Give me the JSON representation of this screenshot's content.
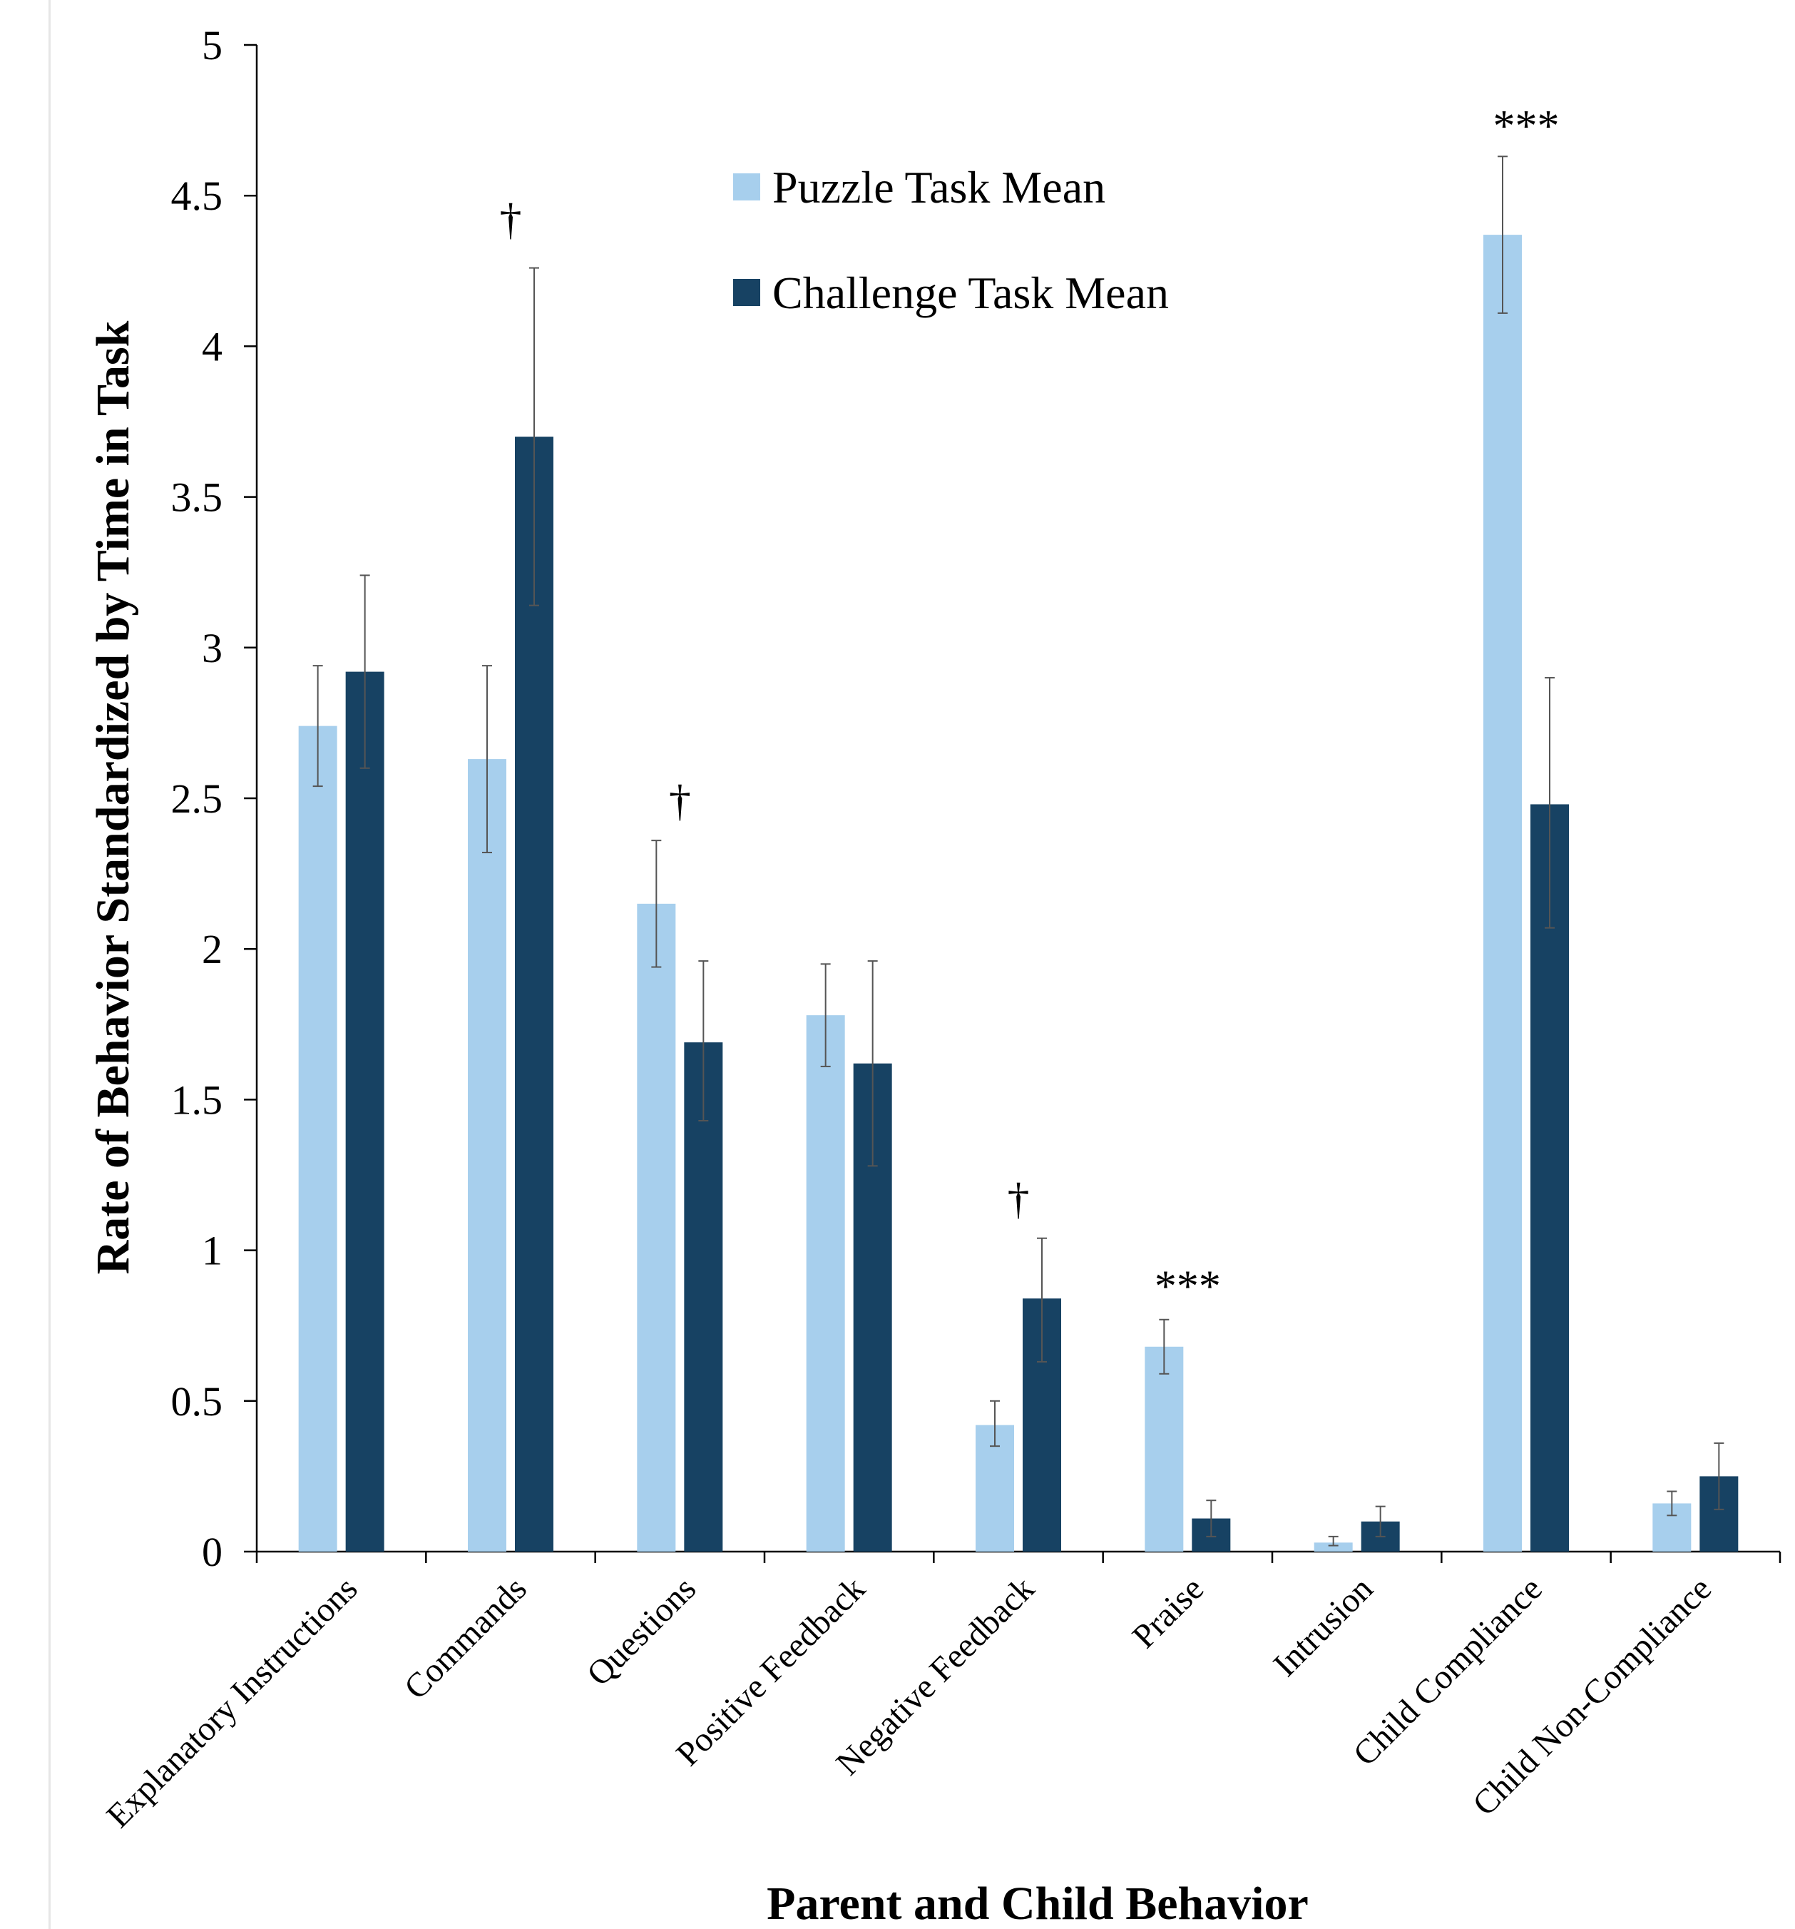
{
  "chart_data": {
    "type": "bar",
    "xlabel": "Parent and Child Behavior",
    "ylabel": "Rate of Behavior Standardized by Time in Task",
    "ylim": [
      0,
      5
    ],
    "yticks": [
      "0",
      "0.5",
      "1",
      "1.5",
      "2",
      "2.5",
      "3",
      "3.5",
      "4",
      "4.5",
      "5"
    ],
    "grid": false,
    "legend_position": "top-center",
    "categories": [
      "Explanatory Instructions",
      "Commands",
      "Questions",
      "Positive Feedback",
      "Negative Feedback",
      "Praise",
      "Intrusion",
      "Child Compliance",
      "Child Non-Compliance"
    ],
    "series": [
      {
        "name": "Puzzle Task Mean",
        "color": "#a7cfed",
        "values": [
          2.74,
          2.63,
          2.15,
          1.78,
          0.42,
          0.68,
          0.03,
          4.37,
          0.16
        ],
        "error_low": [
          2.54,
          2.32,
          1.94,
          1.61,
          0.35,
          0.59,
          0.02,
          4.11,
          0.12
        ],
        "error_high": [
          2.94,
          2.94,
          2.36,
          1.95,
          0.5,
          0.77,
          0.05,
          4.63,
          0.2
        ]
      },
      {
        "name": "Challenge Task Mean",
        "color": "#174263",
        "values": [
          2.92,
          3.7,
          1.69,
          1.62,
          0.84,
          0.11,
          0.1,
          2.48,
          0.25
        ],
        "error_low": [
          2.6,
          3.14,
          1.43,
          1.28,
          0.63,
          0.05,
          0.05,
          2.07,
          0.14
        ],
        "error_high": [
          3.24,
          4.26,
          1.96,
          1.96,
          1.04,
          0.17,
          0.15,
          2.9,
          0.36
        ]
      }
    ],
    "annotations": [
      {
        "category": "Commands",
        "text": "†",
        "y": 4.42
      },
      {
        "category": "Questions",
        "text": "†",
        "y": 2.49
      },
      {
        "category": "Negative Feedback",
        "text": "†",
        "y": 1.17
      },
      {
        "category": "Praise",
        "text": "***",
        "y": 0.88
      },
      {
        "category": "Child Compliance",
        "text": "***",
        "y": 4.73
      }
    ]
  }
}
